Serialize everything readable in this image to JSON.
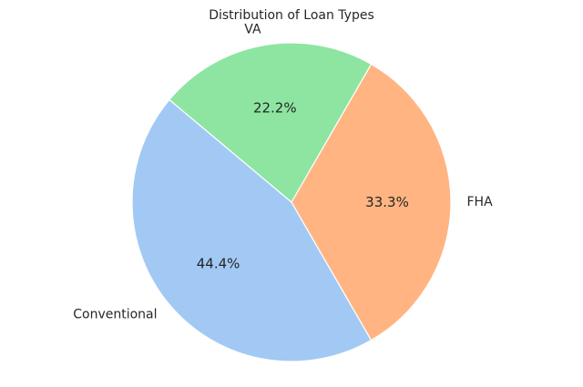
{
  "chart_data": {
    "type": "pie",
    "title": "Distribution of Loan Types",
    "categories": [
      "Conventional",
      "FHA",
      "VA"
    ],
    "values": [
      44.4,
      33.3,
      22.2
    ],
    "percent_labels": [
      "44.4%",
      "33.3%",
      "22.2%"
    ],
    "colors": [
      "#a1c9f4",
      "#ffb482",
      "#8de5a1"
    ],
    "edge_color": "#ffffff",
    "start_angle_deg": 140,
    "counterclockwise": true
  }
}
